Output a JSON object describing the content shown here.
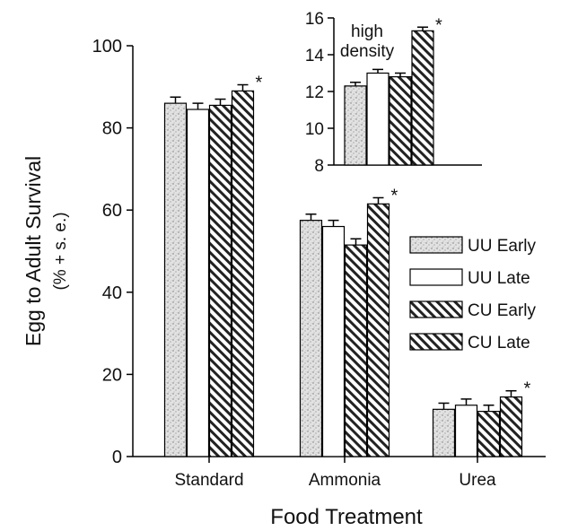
{
  "chart_data": [
    {
      "type": "bar",
      "xlabel": "Food Treatment",
      "ylabel_line1": "Egg to Adult Survival",
      "ylabel_line2": "(% + s. e.)",
      "ylim": [
        0,
        100
      ],
      "yticks": [
        0,
        20,
        40,
        60,
        80,
        100
      ],
      "grid": false,
      "legend": "right",
      "categories": [
        "Standard",
        "Ammonia",
        "Urea"
      ],
      "series": [
        {
          "name": "UU Early",
          "pattern": "stipple",
          "values": [
            86,
            57.5,
            11.5
          ],
          "errors": [
            1.5,
            1.5,
            1.5
          ]
        },
        {
          "name": "UU Late",
          "pattern": "white",
          "values": [
            84.5,
            56,
            12.5
          ],
          "errors": [
            1.5,
            1.5,
            1.5
          ]
        },
        {
          "name": "CU Early",
          "pattern": "hatch",
          "values": [
            85.5,
            51.5,
            11
          ],
          "errors": [
            1.5,
            1.5,
            1.5
          ]
        },
        {
          "name": "CU Late",
          "pattern": "hatch",
          "values": [
            89,
            61.5,
            14.5
          ],
          "errors": [
            1.5,
            1.5,
            1.5
          ]
        }
      ],
      "significance_marker": "*",
      "significant": [
        [
          false,
          false,
          false,
          true
        ],
        [
          false,
          false,
          false,
          true
        ],
        [
          false,
          false,
          false,
          true
        ]
      ]
    },
    {
      "type": "bar",
      "annotation_line1": "high",
      "annotation_line2": "density",
      "ylim": [
        8,
        16
      ],
      "yticks": [
        8,
        10,
        12,
        14,
        16
      ],
      "series_names": [
        "UU Early",
        "UU Late",
        "CU Early",
        "CU Late"
      ],
      "patterns": [
        "stipple",
        "white",
        "hatch",
        "hatch"
      ],
      "values": [
        12.3,
        13.0,
        12.8,
        15.3
      ],
      "errors": [
        0.2,
        0.2,
        0.2,
        0.2
      ],
      "significant": [
        false,
        false,
        false,
        true
      ]
    }
  ]
}
